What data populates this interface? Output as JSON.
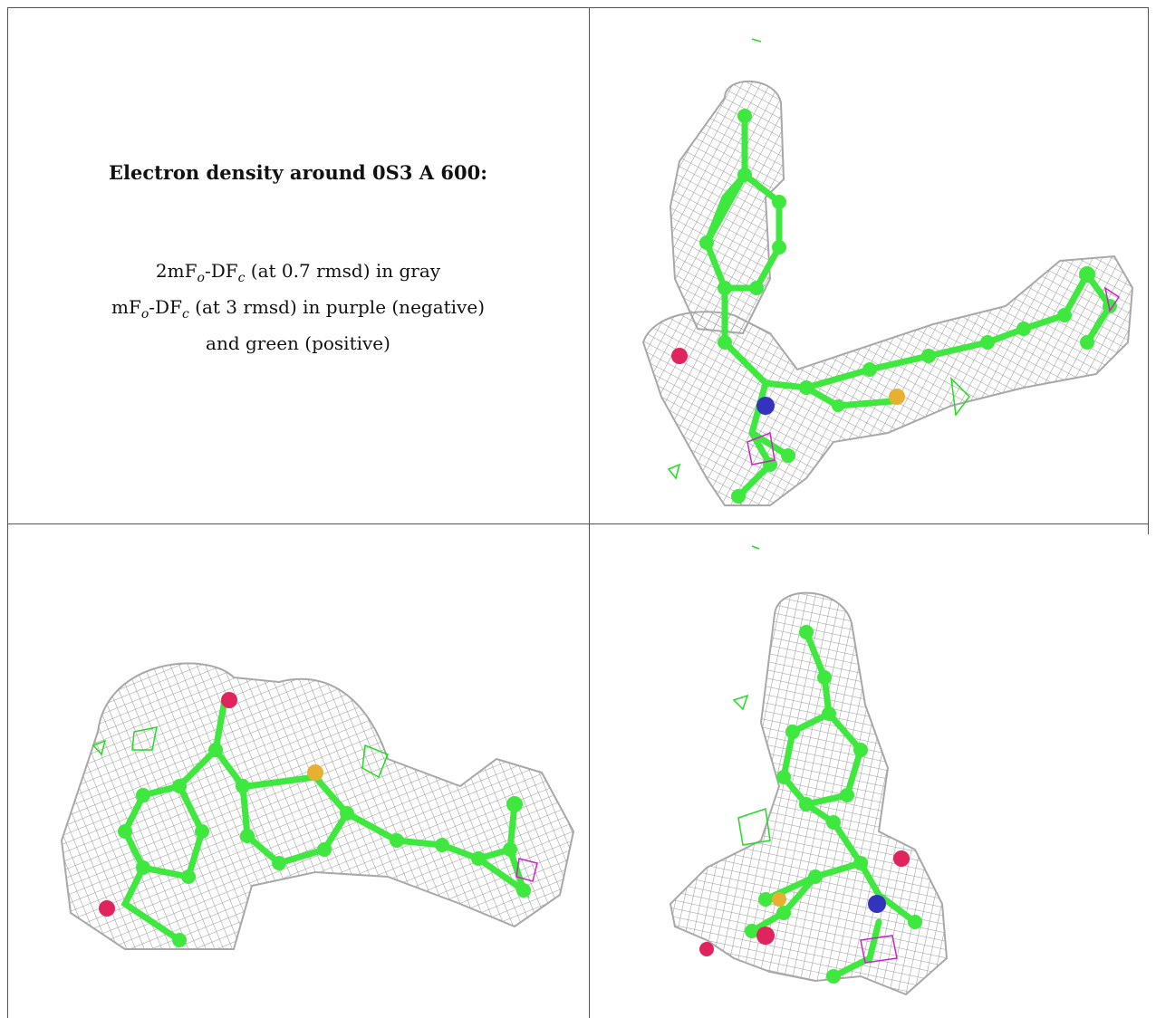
{
  "caption": {
    "title": "Electron density around 0S3 A 600:",
    "line1_a": "2mF",
    "line1_sub1": "o",
    "line1_b": "-DF",
    "line1_sub2": "c",
    "line1_c": " (at 0.7 rmsd) in gray",
    "line2_a": "mF",
    "line2_sub1": "o",
    "line2_b": "-DF",
    "line2_sub2": "c",
    "line2_c": " (at 3 rmsd) in purple (negative)",
    "line3": "and green (positive)"
  },
  "colors": {
    "mesh_2fofc": "#9a9a9a",
    "mesh_positive": "#22dd22",
    "mesh_negative": "#cc22cc",
    "carbon": "#3ee83e",
    "oxygen": "#e0245e",
    "nitrogen": "#3333bb",
    "sulfur": "#e8b030"
  },
  "views": [
    {
      "name": "view-top-right"
    },
    {
      "name": "view-bottom-left"
    },
    {
      "name": "view-bottom-right"
    }
  ]
}
